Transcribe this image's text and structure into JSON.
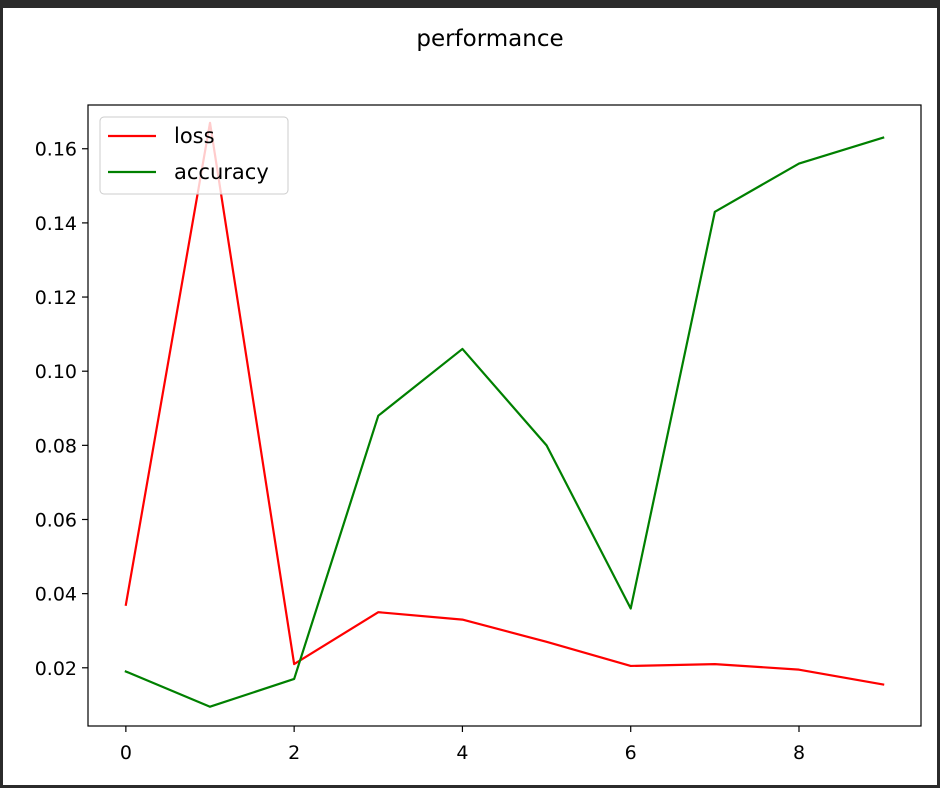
{
  "chart_data": {
    "type": "line",
    "title": "performance",
    "xlabel": "",
    "ylabel": "",
    "x": [
      0,
      1,
      2,
      3,
      4,
      5,
      6,
      7,
      8,
      9
    ],
    "xlim": [
      -0.45,
      9.45
    ],
    "ylim": [
      0.0043,
      0.1718
    ],
    "xticks": [
      0,
      2,
      4,
      6,
      8
    ],
    "xtick_labels": [
      "0",
      "2",
      "4",
      "6",
      "8"
    ],
    "yticks": [
      0.02,
      0.04,
      0.06,
      0.08,
      0.1,
      0.12,
      0.14,
      0.16
    ],
    "ytick_labels": [
      "0.02",
      "0.04",
      "0.06",
      "0.08",
      "0.10",
      "0.12",
      "0.14",
      "0.16"
    ],
    "grid": false,
    "legend_position": "upper-left",
    "series": [
      {
        "name": "loss",
        "color": "#ff0000",
        "values": [
          0.037,
          0.167,
          0.021,
          0.035,
          0.033,
          0.027,
          0.0205,
          0.021,
          0.0195,
          0.0155
        ]
      },
      {
        "name": "accuracy",
        "color": "#008000",
        "values": [
          0.019,
          0.0095,
          0.017,
          0.088,
          0.106,
          0.08,
          0.036,
          0.143,
          0.156,
          0.163
        ]
      }
    ]
  }
}
